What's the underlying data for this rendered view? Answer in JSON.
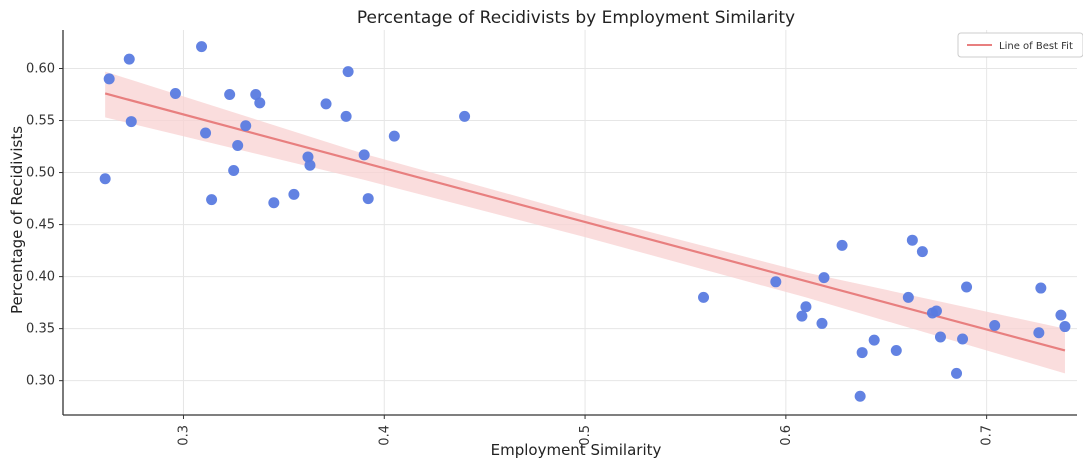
{
  "chart_data": {
    "type": "scatter",
    "title": "Percentage of Recidivists by Employment Similarity",
    "xlabel": "Employment Similarity",
    "ylabel": "Percentage of Recidivists",
    "xlim": [
      0.24,
      0.745
    ],
    "ylim": [
      0.267,
      0.637
    ],
    "xticks": [
      0.3,
      0.4,
      0.5,
      0.6,
      0.7
    ],
    "xtick_labels": [
      "0.3",
      "0.4",
      "0.5",
      "0.6",
      "0.7"
    ],
    "yticks": [
      0.3,
      0.35,
      0.4,
      0.45,
      0.5,
      0.55,
      0.6
    ],
    "ytick_labels": [
      "0.30",
      "0.35",
      "0.40",
      "0.45",
      "0.50",
      "0.55",
      "0.60"
    ],
    "grid": true,
    "legend_position": "top-right",
    "colors": {
      "points": "#5a7be0",
      "fit_line": "#e87f7f",
      "confidence_band": "#f8d2d2"
    },
    "series": [
      {
        "kind": "points",
        "x": [
          0.261,
          0.263,
          0.273,
          0.274,
          0.296,
          0.309,
          0.311,
          0.314,
          0.323,
          0.325,
          0.327,
          0.331,
          0.336,
          0.338,
          0.345,
          0.355,
          0.362,
          0.363,
          0.371,
          0.381,
          0.382,
          0.39,
          0.392,
          0.405,
          0.44,
          0.559,
          0.595,
          0.608,
          0.61,
          0.618,
          0.619,
          0.628,
          0.637,
          0.638,
          0.644,
          0.655,
          0.661,
          0.663,
          0.668,
          0.673,
          0.675,
          0.677,
          0.685,
          0.688,
          0.69,
          0.704,
          0.726,
          0.727,
          0.737,
          0.739
        ],
        "y": [
          0.494,
          0.59,
          0.609,
          0.549,
          0.576,
          0.621,
          0.538,
          0.474,
          0.575,
          0.502,
          0.526,
          0.545,
          0.575,
          0.567,
          0.471,
          0.479,
          0.515,
          0.507,
          0.566,
          0.554,
          0.597,
          0.517,
          0.475,
          0.535,
          0.554,
          0.38,
          0.395,
          0.362,
          0.371,
          0.355,
          0.399,
          0.43,
          0.285,
          0.327,
          0.339,
          0.329,
          0.38,
          0.435,
          0.424,
          0.365,
          0.367,
          0.342,
          0.307,
          0.34,
          0.39,
          0.353,
          0.346,
          0.389,
          0.363,
          0.352
        ]
      },
      {
        "kind": "line",
        "name": "Line of Best Fit",
        "x": [
          0.261,
          0.739
        ],
        "y": [
          0.576,
          0.329
        ]
      },
      {
        "kind": "band",
        "x": [
          0.261,
          0.39,
          0.5,
          0.61,
          0.739
        ],
        "upper": [
          0.597,
          0.518,
          0.459,
          0.404,
          0.35
        ],
        "lower": [
          0.553,
          0.493,
          0.438,
          0.38,
          0.307
        ]
      }
    ]
  }
}
